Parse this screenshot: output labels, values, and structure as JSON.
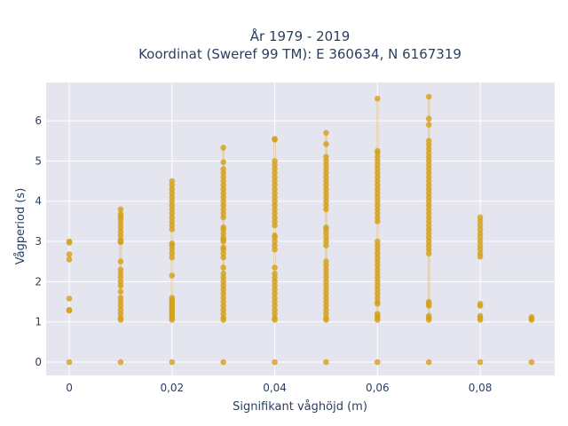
{
  "chart_data": {
    "type": "scatter",
    "title": "År 1979 - 2019",
    "subtitle": "Koordinat (Sweref 99 TM): E 360634, N 6167319",
    "xlabel": "Signifikant våghöjd (m)",
    "ylabel": "Vågperiod (s)",
    "xlim": [
      -0.0045,
      0.0945
    ],
    "ylim": [
      -0.33,
      6.95
    ],
    "x_ticks": [
      0,
      0.02,
      0.04,
      0.06,
      0.08
    ],
    "x_tick_labels": [
      "0",
      "0,02",
      "0,04",
      "0,06",
      "0,08"
    ],
    "y_ticks": [
      0,
      1,
      2,
      3,
      4,
      5,
      6
    ],
    "y_tick_labels": [
      "0",
      "1",
      "2",
      "3",
      "4",
      "5",
      "6"
    ],
    "grid": true,
    "marker_color": "#D4A017",
    "plot_background": "#E5E5EF",
    "columns": [
      {
        "x": 0.0,
        "points": [
          0,
          1.28,
          1.3,
          1.58,
          2.55,
          2.68,
          2.97,
          3.0
        ]
      },
      {
        "x": 0.01,
        "range": [
          1.05,
          3.8
        ],
        "points": [
          0,
          1.05,
          1.1,
          1.2,
          1.3,
          1.4,
          1.5,
          1.6,
          1.75,
          1.9,
          2.0,
          2.1,
          2.2,
          2.3,
          2.5,
          2.98,
          3.0,
          3.05,
          3.15,
          3.25,
          3.35,
          3.45,
          3.55,
          3.62,
          3.68,
          3.8
        ]
      },
      {
        "x": 0.02,
        "range": [
          1.05,
          4.5
        ],
        "points": [
          0,
          1.05,
          1.1,
          1.15,
          1.2,
          1.25,
          1.3,
          1.35,
          1.4,
          1.45,
          1.5,
          1.55,
          1.6,
          2.15,
          2.6,
          2.7,
          2.8,
          2.9,
          2.95,
          3.3,
          3.4,
          3.5,
          3.6,
          3.7,
          3.8,
          3.9,
          4.0,
          4.1,
          4.2,
          4.3,
          4.4,
          4.5
        ]
      },
      {
        "x": 0.03,
        "range": [
          1.05,
          5.33
        ],
        "points": [
          0,
          1.05,
          1.1,
          1.2,
          1.3,
          1.4,
          1.5,
          1.6,
          1.7,
          1.8,
          1.9,
          2.0,
          2.1,
          2.2,
          2.35,
          2.6,
          2.7,
          2.8,
          2.85,
          3.0,
          3.05,
          3.1,
          3.2,
          3.3,
          3.35,
          3.6,
          3.7,
          3.8,
          3.9,
          4.0,
          4.1,
          4.2,
          4.3,
          4.4,
          4.5,
          4.6,
          4.7,
          4.8,
          4.97,
          5.33
        ]
      },
      {
        "x": 0.04,
        "range": [
          1.05,
          5.55
        ],
        "points": [
          0,
          1.05,
          1.1,
          1.2,
          1.3,
          1.4,
          1.5,
          1.6,
          1.7,
          1.8,
          1.9,
          2.0,
          2.1,
          2.2,
          2.35,
          2.8,
          2.9,
          3.0,
          3.1,
          3.15,
          3.4,
          3.5,
          3.6,
          3.7,
          3.8,
          3.9,
          4.0,
          4.1,
          4.2,
          4.3,
          4.4,
          4.5,
          4.6,
          4.7,
          4.8,
          4.9,
          5.0,
          5.53,
          5.55
        ]
      },
      {
        "x": 0.05,
        "range": [
          1.05,
          5.7
        ],
        "points": [
          0,
          1.05,
          1.1,
          1.2,
          1.3,
          1.4,
          1.5,
          1.6,
          1.7,
          1.8,
          1.9,
          2.0,
          2.1,
          2.2,
          2.3,
          2.4,
          2.5,
          2.9,
          3.0,
          3.1,
          3.2,
          3.3,
          3.35,
          3.8,
          3.9,
          4.0,
          4.1,
          4.2,
          4.3,
          4.4,
          4.5,
          4.6,
          4.7,
          4.8,
          4.9,
          5.0,
          5.1,
          5.42,
          5.7
        ]
      },
      {
        "x": 0.06,
        "range": [
          1.05,
          6.55
        ],
        "points": [
          0,
          1.05,
          1.1,
          1.15,
          1.2,
          1.45,
          1.5,
          1.6,
          1.7,
          1.8,
          1.9,
          2.0,
          2.1,
          2.2,
          2.3,
          2.4,
          2.5,
          2.6,
          2.7,
          2.8,
          2.9,
          3.0,
          3.5,
          3.6,
          3.7,
          3.8,
          3.9,
          4.0,
          4.1,
          4.2,
          4.3,
          4.4,
          4.5,
          4.6,
          4.7,
          4.8,
          4.9,
          5.0,
          5.1,
          5.2,
          5.25,
          6.55
        ]
      },
      {
        "x": 0.07,
        "range": [
          1.05,
          6.6
        ],
        "points": [
          0,
          1.05,
          1.1,
          1.15,
          1.4,
          1.45,
          1.5,
          2.7,
          2.8,
          2.9,
          3.0,
          3.1,
          3.2,
          3.3,
          3.4,
          3.5,
          3.6,
          3.7,
          3.8,
          3.9,
          4.0,
          4.1,
          4.2,
          4.3,
          4.4,
          4.5,
          4.6,
          4.7,
          4.8,
          4.9,
          5.0,
          5.1,
          5.2,
          5.3,
          5.4,
          5.5,
          5.9,
          6.05,
          6.6
        ]
      },
      {
        "x": 0.08,
        "points": [
          0,
          1.05,
          1.1,
          1.15,
          1.4,
          1.45,
          2.62,
          2.7,
          2.8,
          2.9,
          3.0,
          3.1,
          3.2,
          3.3,
          3.4,
          3.5,
          3.6
        ]
      },
      {
        "x": 0.09,
        "points": [
          0,
          1.05,
          1.08,
          1.12
        ]
      }
    ]
  }
}
